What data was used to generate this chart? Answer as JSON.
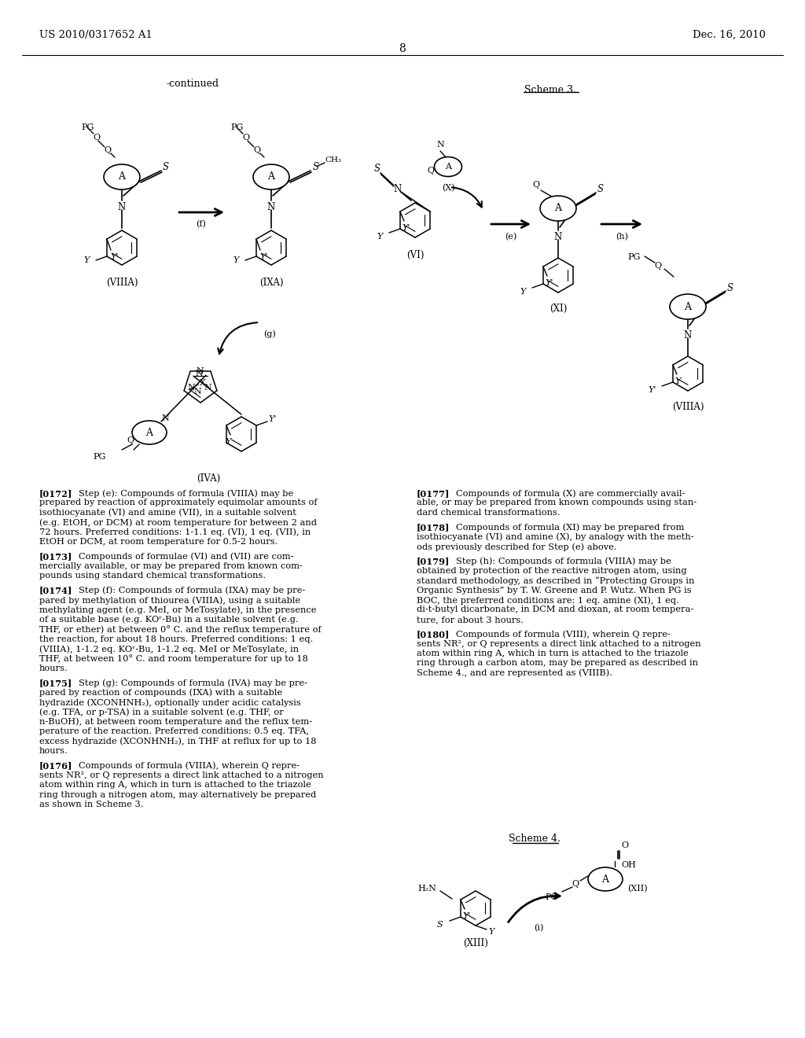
{
  "page_header_left": "US 2010/0317652 A1",
  "page_header_right": "Dec. 16, 2010",
  "page_number": "8",
  "bg_color": "#ffffff",
  "continued_label": "-continued",
  "scheme3_label": "Scheme 3.",
  "scheme4_label": "Scheme 4.",
  "left_paras": [
    {
      "ref": "[0172]",
      "body": "Step (e): Compounds of formula (VIIIA) may be\nprepared by reaction of approximately equimolar amounts of\nisothiocyanate (VI) and amine (VII), in a suitable solvent\n(e.g. EtOH, or DCM) at room temperature for between 2 and\n72 hours. Preferred conditions: 1-1.1 eq. (VI), 1 eq. (VII), in\nEtOH or DCM, at room temperature for 0.5-2 hours."
    },
    {
      "ref": "[0173]",
      "body": "Compounds of formulae (VI) and (VII) are com-\nmercially available, or may be prepared from known com-\npounds using standard chemical transformations."
    },
    {
      "ref": "[0174]",
      "body": "Step (f): Compounds of formula (IXA) may be pre-\npared by methylation of thiourea (VIIIA), using a suitable\nmethylating agent (e.g. MeI, or MeTosylate), in the presence\nof a suitable base (e.g. KOʳ-Bu) in a suitable solvent (e.g.\nTHF, or ether) at between 0° C. and the reflux temperature of\nthe reaction, for about 18 hours. Preferred conditions: 1 eq.\n(VIIIA), 1-1.2 eq. KOʳ-Bu, 1-1.2 eq. MeI or MeTosylate, in\nTHF, at between 10° C. and room temperature for up to 18\nhours."
    },
    {
      "ref": "[0175]",
      "body": "Step (g): Compounds of formula (IVA) may be pre-\npared by reaction of compounds (IXA) with a suitable\nhydrazide (XCONHNH₂), optionally under acidic catalysis\n(e.g. TFA, or p-TSA) in a suitable solvent (e.g. THF, or\nn-BuOH), at between room temperature and the reflux tem-\nperature of the reaction. Preferred conditions: 0.5 eq. TFA,\nexcess hydrazide (XCONHNH₂), in THF at reflux for up to 18\nhours."
    },
    {
      "ref": "[0176]",
      "body": "Compounds of formula (VIIIA), wherein Q repre-\nsents NR², or Q represents a direct link attached to a nitrogen\natom within ring A, which in turn is attached to the triazole\nring through a nitrogen atom, may alternatively be prepared\nas shown in Scheme 3."
    }
  ],
  "right_paras": [
    {
      "ref": "[0177]",
      "body": "Compounds of formula (X) are commercially avail-\nable, or may be prepared from known compounds using stan-\ndard chemical transformations."
    },
    {
      "ref": "[0178]",
      "body": "Compounds of formula (XI) may be prepared from\nisothiocyanate (VI) and amine (X), by analogy with the meth-\nods previously described for Step (e) above."
    },
    {
      "ref": "[0179]",
      "body": "Step (h): Compounds of formula (VIIIA) may be\nobtained by protection of the reactive nitrogen atom, using\nstandard methodology, as described in “Protecting Groups in\nOrganic Synthesis” by T. W. Greene and P. Wutz. When PG is\nBOC, the preferred conditions are: 1 eq. amine (XI), 1 eq.\ndi-t-butyl dicarbonate, in DCM and dioxan, at room tempera-\nture, for about 3 hours."
    },
    {
      "ref": "[0180]",
      "body": "Compounds of formula (VIII), wherein Q repre-\nsents NR², or Q represents a direct link attached to a nitrogen\natom within ring A, which in turn is attached to the triazole\nring through a carbon atom, may be prepared as described in\nScheme 4., and are represented as (VIIIB)."
    }
  ]
}
